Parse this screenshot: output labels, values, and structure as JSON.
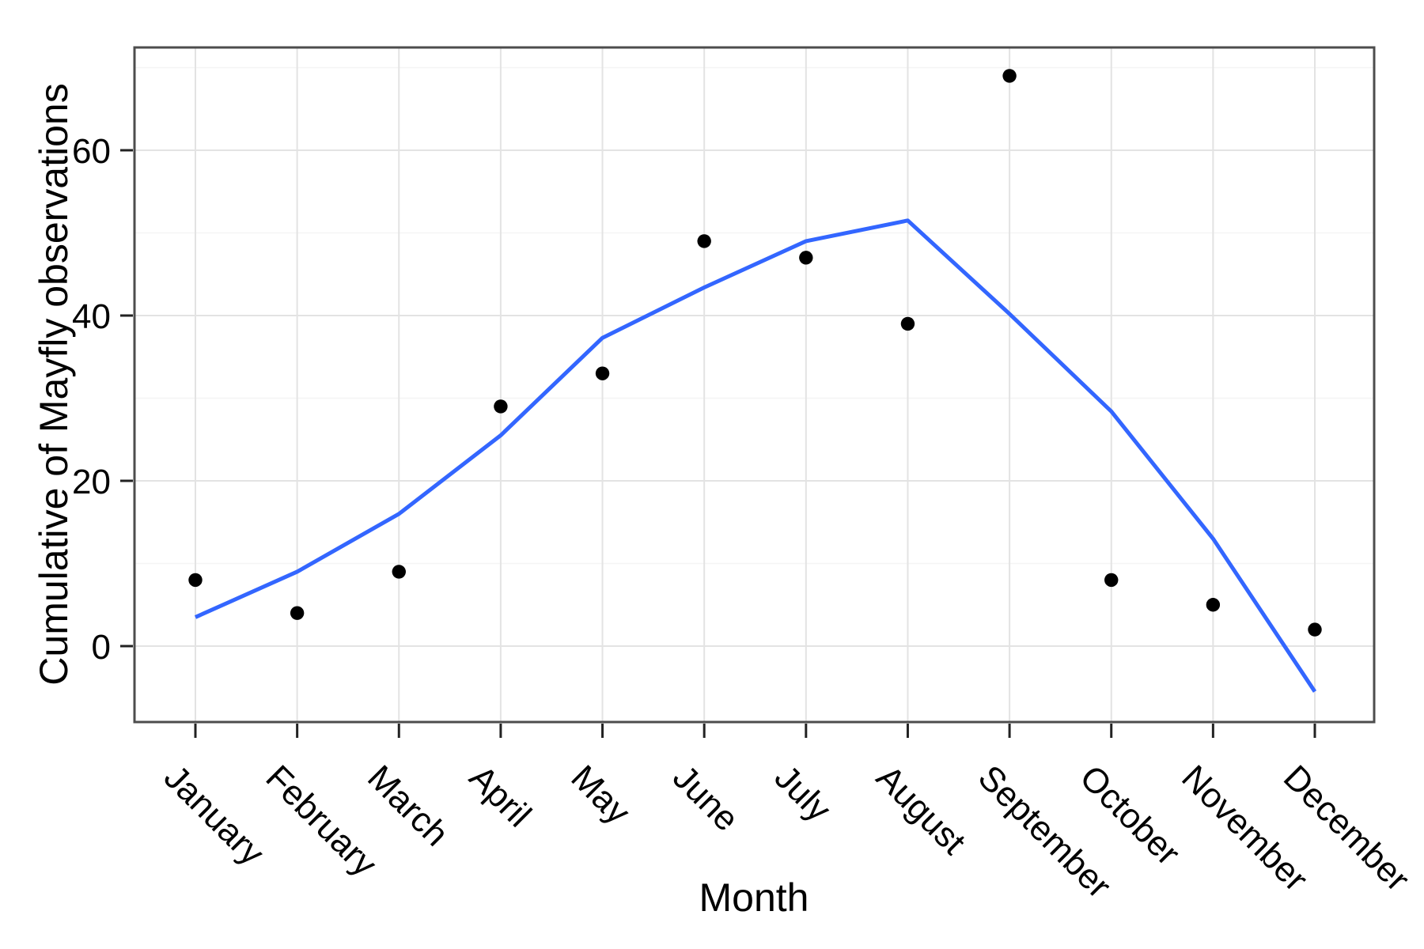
{
  "chart_data": {
    "type": "scatter",
    "title": "",
    "xlabel": "Month",
    "ylabel": "Cumulative of Mayfly observations",
    "categories": [
      "January",
      "February",
      "March",
      "April",
      "May",
      "June",
      "July",
      "August",
      "September",
      "October",
      "November",
      "December"
    ],
    "series": [
      {
        "name": "observations-points",
        "geom": "point",
        "color": "#000000",
        "values": [
          8,
          4,
          9,
          29,
          33,
          49,
          47,
          39,
          69,
          8,
          5,
          2
        ]
      },
      {
        "name": "smooth-trend-line",
        "geom": "line",
        "color": "#3366FF",
        "values": [
          3.5,
          9,
          16,
          25.5,
          37.3,
          43.4,
          49,
          51.5,
          40.2,
          28.4,
          13,
          -5.5
        ]
      }
    ],
    "yticks": [
      0,
      20,
      40,
      60
    ],
    "ytick_labels": [
      "0",
      "20",
      "40",
      "60"
    ],
    "yticks_minor": [
      10,
      30,
      50,
      70
    ],
    "ylim": [
      -9.2,
      72.4
    ],
    "grid": "on",
    "legend": "none",
    "x_tick_label_angle_deg": 45,
    "colors": {
      "major_grid": "#E3E3E3",
      "minor_grid": "#F5F5F5",
      "panel_border": "#4D4D4D",
      "tick_mark": "#222222",
      "point": "#000000",
      "line": "#3366FF",
      "background": "#FFFFFF"
    }
  }
}
